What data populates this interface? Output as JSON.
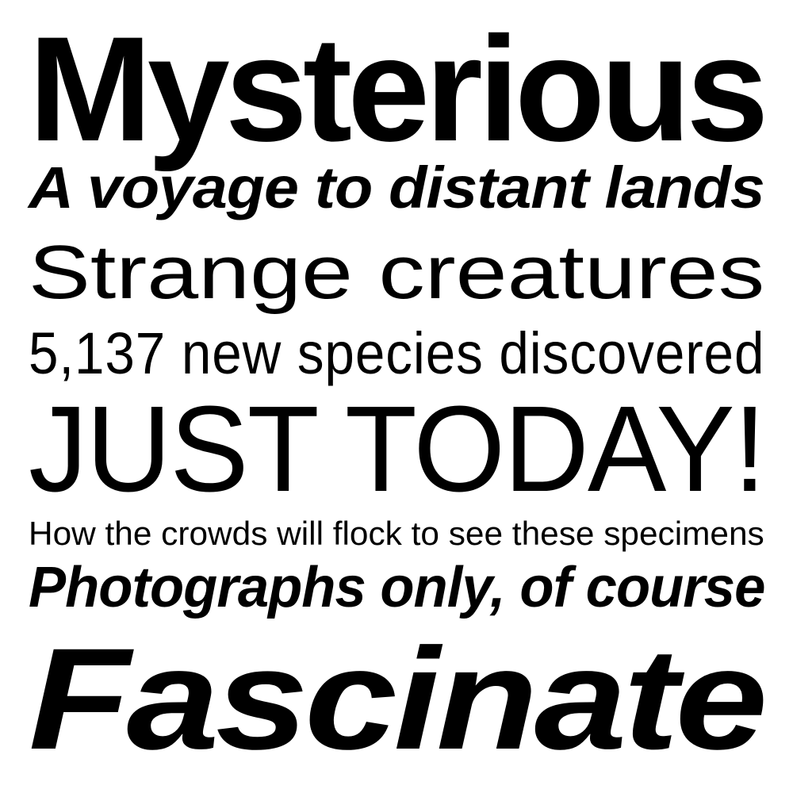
{
  "specimen": {
    "lines": [
      "Mysterious",
      "A voyage to distant lands",
      "Strange creatures",
      "5,137 new species discovered",
      "JUST TODAY!",
      "How the crowds will flock to see these specimens",
      "Photographs only, of course",
      "Fascinate"
    ]
  }
}
